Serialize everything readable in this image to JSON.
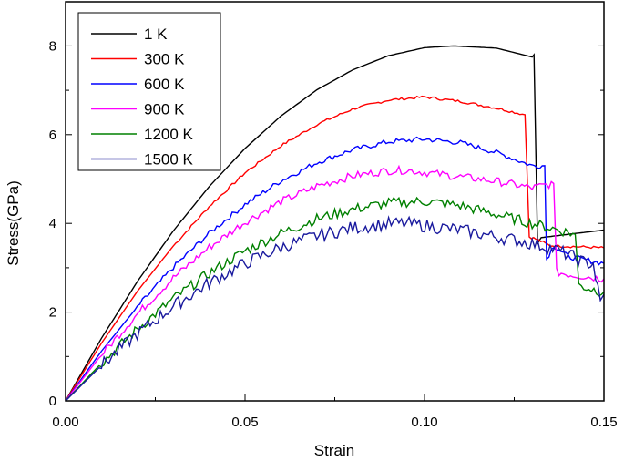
{
  "chart_data": {
    "type": "line",
    "xlabel": "Strain",
    "ylabel": "Stress(GPa)",
    "xlim": [
      0,
      0.15
    ],
    "ylim": [
      0,
      8.8
    ],
    "xticks": [
      "0.00",
      "0.05",
      "0.10",
      "0.15"
    ],
    "yticks": [
      "0",
      "2",
      "4",
      "6",
      "8"
    ],
    "grid": false,
    "legend_position": "top-left",
    "series": [
      {
        "name": "1 K",
        "color": "#000000",
        "points": [
          [
            0,
            0
          ],
          [
            0.01,
            1.41
          ],
          [
            0.02,
            2.69
          ],
          [
            0.03,
            3.83
          ],
          [
            0.04,
            4.83
          ],
          [
            0.05,
            5.69
          ],
          [
            0.06,
            6.42
          ],
          [
            0.07,
            7.01
          ],
          [
            0.08,
            7.46
          ],
          [
            0.09,
            7.78
          ],
          [
            0.1,
            7.96
          ],
          [
            0.108,
            8.0
          ],
          [
            0.12,
            7.95
          ],
          [
            0.13,
            7.75
          ],
          [
            0.1305,
            7.8
          ],
          [
            0.1315,
            3.55
          ],
          [
            0.1325,
            3.68
          ],
          [
            0.15,
            3.85
          ]
        ]
      },
      {
        "name": "300 K",
        "color": "#ff0000",
        "points": [
          [
            0,
            0
          ],
          [
            0.01,
            1.3
          ],
          [
            0.02,
            2.47
          ],
          [
            0.03,
            3.49
          ],
          [
            0.04,
            4.38
          ],
          [
            0.05,
            5.14
          ],
          [
            0.06,
            5.75
          ],
          [
            0.07,
            6.23
          ],
          [
            0.08,
            6.58
          ],
          [
            0.09,
            6.78
          ],
          [
            0.1,
            6.85
          ],
          [
            0.11,
            6.75
          ],
          [
            0.12,
            6.6
          ],
          [
            0.128,
            6.45
          ],
          [
            0.1292,
            3.7
          ],
          [
            0.131,
            3.65
          ],
          [
            0.135,
            3.5
          ],
          [
            0.15,
            3.45
          ]
        ]
      },
      {
        "name": "600 K",
        "color": "#0000ff",
        "points": [
          [
            0,
            0
          ],
          [
            0.01,
            1.12
          ],
          [
            0.02,
            2.12
          ],
          [
            0.03,
            3.01
          ],
          [
            0.04,
            3.78
          ],
          [
            0.05,
            4.43
          ],
          [
            0.06,
            4.96
          ],
          [
            0.07,
            5.37
          ],
          [
            0.08,
            5.66
          ],
          [
            0.09,
            5.84
          ],
          [
            0.1,
            5.9
          ],
          [
            0.11,
            5.82
          ],
          [
            0.12,
            5.6
          ],
          [
            0.13,
            5.3
          ],
          [
            0.1335,
            5.3
          ],
          [
            0.134,
            3.2
          ],
          [
            0.136,
            3.5
          ],
          [
            0.14,
            3.25
          ],
          [
            0.15,
            3.1
          ]
        ]
      },
      {
        "name": "900 K",
        "color": "#ff00ff",
        "points": [
          [
            0,
            0
          ],
          [
            0.01,
            1.04
          ],
          [
            0.02,
            1.96
          ],
          [
            0.03,
            2.77
          ],
          [
            0.04,
            3.46
          ],
          [
            0.05,
            4.03
          ],
          [
            0.06,
            4.49
          ],
          [
            0.07,
            4.84
          ],
          [
            0.08,
            5.07
          ],
          [
            0.09,
            5.19
          ],
          [
            0.095,
            5.2
          ],
          [
            0.105,
            5.1
          ],
          [
            0.12,
            4.95
          ],
          [
            0.13,
            4.8
          ],
          [
            0.136,
            4.9
          ],
          [
            0.1368,
            2.9
          ],
          [
            0.14,
            2.85
          ],
          [
            0.15,
            2.75
          ]
        ]
      },
      {
        "name": "1200 K",
        "color": "#008000",
        "points": [
          [
            0,
            0
          ],
          [
            0.01,
            0.85
          ],
          [
            0.02,
            1.62
          ],
          [
            0.03,
            2.3
          ],
          [
            0.04,
            2.88
          ],
          [
            0.05,
            3.38
          ],
          [
            0.06,
            3.78
          ],
          [
            0.07,
            4.1
          ],
          [
            0.08,
            4.32
          ],
          [
            0.09,
            4.46
          ],
          [
            0.1,
            4.5
          ],
          [
            0.11,
            4.4
          ],
          [
            0.12,
            4.2
          ],
          [
            0.13,
            4.0
          ],
          [
            0.14,
            3.8
          ],
          [
            0.142,
            3.75
          ],
          [
            0.143,
            2.6
          ],
          [
            0.15,
            2.45
          ]
        ]
      },
      {
        "name": "1500 K",
        "color": "#1a1a9e",
        "points": [
          [
            0,
            0
          ],
          [
            0.01,
            0.8
          ],
          [
            0.02,
            1.51
          ],
          [
            0.03,
            2.13
          ],
          [
            0.04,
            2.66
          ],
          [
            0.05,
            3.1
          ],
          [
            0.06,
            3.46
          ],
          [
            0.07,
            3.72
          ],
          [
            0.08,
            3.9
          ],
          [
            0.09,
            3.99
          ],
          [
            0.095,
            4.0
          ],
          [
            0.11,
            3.85
          ],
          [
            0.12,
            3.7
          ],
          [
            0.13,
            3.55
          ],
          [
            0.135,
            3.45
          ],
          [
            0.14,
            3.3
          ],
          [
            0.145,
            3.1
          ],
          [
            0.147,
            3.1
          ],
          [
            0.149,
            2.2
          ],
          [
            0.15,
            2.4
          ]
        ]
      }
    ]
  }
}
